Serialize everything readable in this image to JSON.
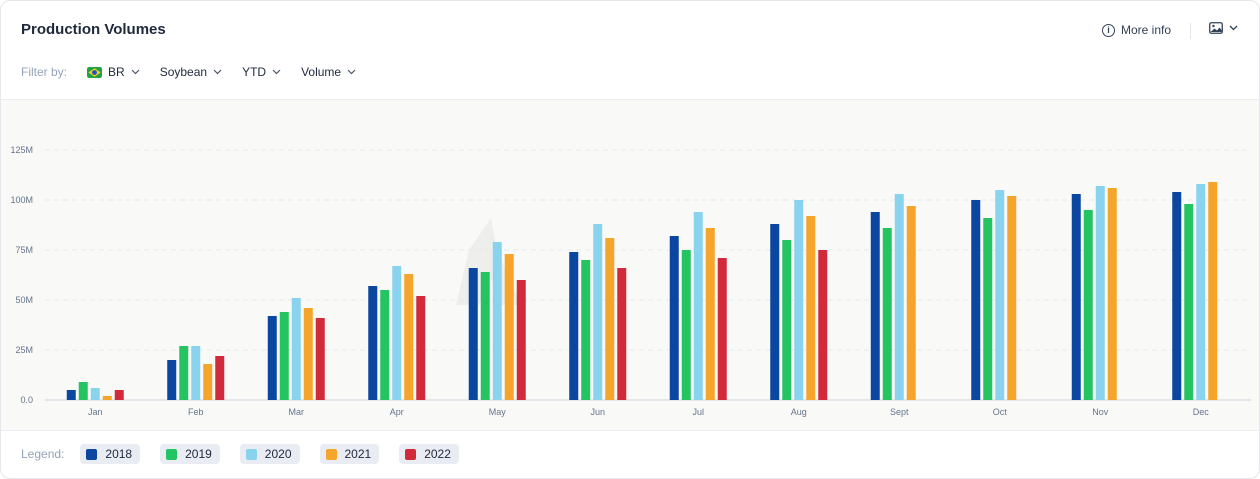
{
  "header": {
    "title": "Production Volumes",
    "more_info_label": "More info"
  },
  "filters": {
    "label": "Filter by:",
    "country": {
      "label": "BR",
      "flag_colors": [
        "#22a34a",
        "#f5d30f",
        "#1d4ed8"
      ]
    },
    "crop": "Soybean",
    "period": "YTD",
    "metric": "Volume"
  },
  "legend": {
    "label": "Legend:"
  },
  "chart_data": {
    "type": "bar",
    "categories": [
      "Jan",
      "Feb",
      "Mar",
      "Apr",
      "May",
      "Jun",
      "Jul",
      "Aug",
      "Sept",
      "Oct",
      "Nov",
      "Dec"
    ],
    "ylim": [
      0,
      125
    ],
    "yticks": [
      "0.0",
      "25M",
      "50M",
      "75M",
      "100M",
      "125M"
    ],
    "grid": true,
    "legend_position": "bottom",
    "series": [
      {
        "name": "2018",
        "color": "#0b47a0",
        "values": [
          5,
          20,
          42,
          57,
          66,
          74,
          82,
          88,
          94,
          100,
          103,
          104
        ]
      },
      {
        "name": "2019",
        "color": "#25c463",
        "values": [
          9,
          27,
          44,
          55,
          64,
          70,
          75,
          80,
          86,
          91,
          95,
          98
        ]
      },
      {
        "name": "2020",
        "color": "#8ad3ef",
        "values": [
          6,
          27,
          51,
          67,
          79,
          88,
          94,
          100,
          103,
          105,
          107,
          108
        ]
      },
      {
        "name": "2021",
        "color": "#f6a52c",
        "values": [
          2,
          18,
          46,
          63,
          73,
          81,
          86,
          92,
          97,
          102,
          106,
          109
        ]
      },
      {
        "name": "2022",
        "color": "#d12b3b",
        "values": [
          5,
          22,
          41,
          52,
          60,
          66,
          71,
          75,
          null,
          null,
          null,
          null
        ]
      }
    ]
  }
}
